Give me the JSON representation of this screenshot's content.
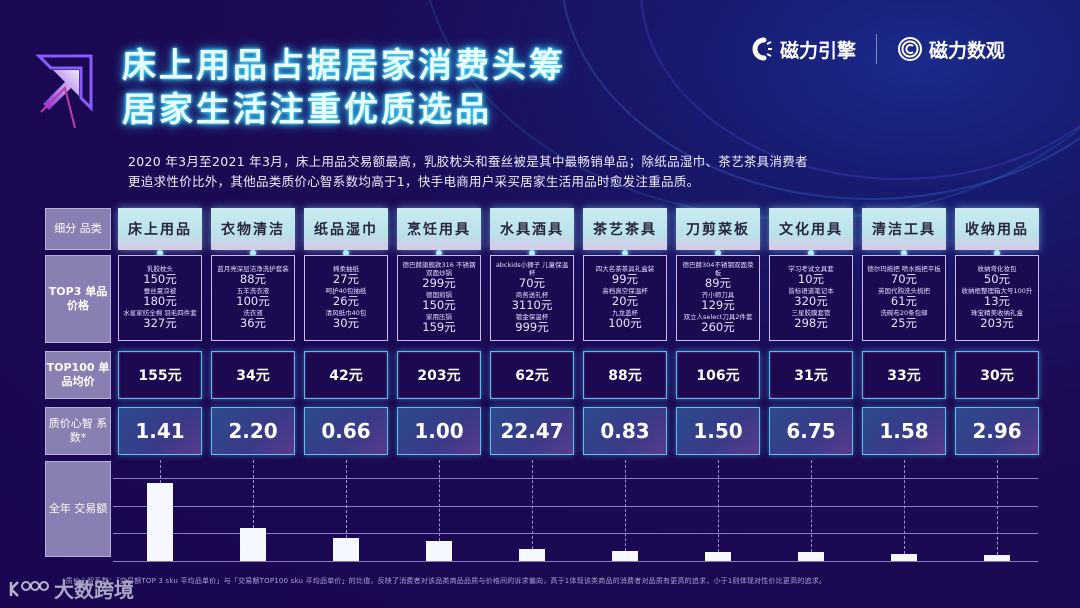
{
  "title": {
    "line1": "床上用品占据居家消费头筹",
    "line2": "居家生活注重优质选品"
  },
  "brands": [
    {
      "name": "磁力引擎",
      "icon": "magnet-engine-logo-icon"
    },
    {
      "name": "磁力数观",
      "icon": "magnet-insight-logo-icon"
    }
  ],
  "summary": {
    "line1": "2020 年3月至2021 年3月，床上用品交易额最高，乳胶枕头和蚕丝被是其中最畅销单品；除纸品湿巾、茶艺茶具消费者",
    "line2": "更追求性价比外，其他品类质价心智系数均高于1，快手电商用户采买居家生活用品时愈发注重品质。"
  },
  "row_labels": {
    "category": "细分 品类",
    "top3": "TOP3 单品价格",
    "avg": "TOP100 单品均价",
    "coef": "质价心智 系数*",
    "gmv": "全年 交易额"
  },
  "categories": [
    {
      "name": "床上用品",
      "top3": [
        {
          "item": "乳胶枕头",
          "price": "150元"
        },
        {
          "item": "蚕丝夏凉被",
          "price": "180元"
        },
        {
          "item": "水星家纺全棉 羽毛四件套",
          "price": "327元"
        }
      ],
      "avg": "155元",
      "coef": "1.41",
      "gmv_rel": 100
    },
    {
      "name": "衣物清洁",
      "top3": [
        {
          "item": "蓝月亮深层洁净洗护套装",
          "price": "88元"
        },
        {
          "item": "五羊洗衣液",
          "price": "100元"
        },
        {
          "item": "洗衣液",
          "price": "36元"
        }
      ],
      "avg": "34元",
      "coef": "2.20",
      "gmv_rel": 42
    },
    {
      "name": "纸品湿巾",
      "top3": [
        {
          "item": "棉柔抽纸",
          "price": "27元"
        },
        {
          "item": "呵护40包抽纸",
          "price": "26元"
        },
        {
          "item": "清风纸巾40包",
          "price": "30元"
        }
      ],
      "avg": "42元",
      "coef": "0.66",
      "gmv_rel": 30
    },
    {
      "name": "烹饪用具",
      "top3": [
        {
          "item": "德巴赫旗舰款316 不锈钢双面炒锅",
          "price": "299元"
        },
        {
          "item": "德国煎锅",
          "price": "150元"
        },
        {
          "item": "家用压锅",
          "price": "159元"
        }
      ],
      "avg": "203元",
      "coef": "1.00",
      "gmv_rel": 25
    },
    {
      "name": "水具酒具",
      "top3": [
        {
          "item": "abckids小狮子 儿童保温杯",
          "price": "70元"
        },
        {
          "item": "商务送礼杯",
          "price": "3110元"
        },
        {
          "item": "镀金保温杯",
          "price": "999元"
        }
      ],
      "avg": "62元",
      "coef": "22.47",
      "gmv_rel": 16
    },
    {
      "name": "茶艺茶具",
      "top3": [
        {
          "item": "四大名茶茶具礼盒装",
          "price": "99元"
        },
        {
          "item": "高档真空保温杯",
          "price": "20元"
        },
        {
          "item": "九龙盖杯",
          "price": "100元"
        }
      ],
      "avg": "88元",
      "coef": "0.83",
      "gmv_rel": 13
    },
    {
      "name": "刀剪菜板",
      "top3": [
        {
          "item": "德巴赫304不锈钢双面菜板",
          "price": "89元"
        },
        {
          "item": "齐小师刀具",
          "price": "129元"
        },
        {
          "item": "双立人select刀具2件套",
          "price": "260元"
        }
      ],
      "avg": "106元",
      "coef": "1.50",
      "gmv_rel": 12
    },
    {
      "name": "文化用具",
      "top3": [
        {
          "item": "学习考试文具套",
          "price": "10元"
        },
        {
          "item": "皆标语道笔记本",
          "price": "320元"
        },
        {
          "item": "三星胶膜套管",
          "price": "298元"
        }
      ],
      "avg": "31元",
      "coef": "6.75",
      "gmv_rel": 11
    },
    {
      "name": "清洁工具",
      "top3": [
        {
          "item": "德尔玛拖把 喷水拖把平板",
          "price": "70元"
        },
        {
          "item": "英国代购洗头梳把",
          "price": "61元"
        },
        {
          "item": "洗碗布20条包邮",
          "price": "25元"
        }
      ],
      "avg": "33元",
      "coef": "1.58",
      "gmv_rel": 9
    },
    {
      "name": "收纳用品",
      "top3": [
        {
          "item": "收纳弯化妆包",
          "price": "50元"
        },
        {
          "item": "收纳框整理箱大号100升",
          "price": "13元"
        },
        {
          "item": "珠宝精美收纳礼盒",
          "price": "203元"
        }
      ],
      "avg": "30元",
      "coef": "2.96",
      "gmv_rel": 8
    }
  ],
  "chart_data": {
    "type": "bar",
    "title": "全年交易额",
    "categories": [
      "床上用品",
      "衣物清洁",
      "纸品湿巾",
      "烹饪用具",
      "水具酒具",
      "茶艺茶具",
      "刀剪菜板",
      "文化用具",
      "清洁工具",
      "收纳用品"
    ],
    "values": [
      100,
      42,
      30,
      25,
      16,
      13,
      12,
      11,
      9,
      8
    ],
    "xlabel": "",
    "ylabel": "全年交易额 (relative, unlabeled axis)",
    "ylim": [
      0,
      110
    ],
    "grid": true,
    "legend": "none"
  },
  "footnote": "*质价心智系数：「交易额TOP 3 sku 平均品单价」与「交易额TOP100 sku 平均品单价」的比值，反映了消费者对该品类商品品质与价格间的诉求偏向，高于1体现该类商品的消费者对品质有更高的追求，小于1则体现对性价比更高的追求。",
  "watermark": "大数跨境"
}
